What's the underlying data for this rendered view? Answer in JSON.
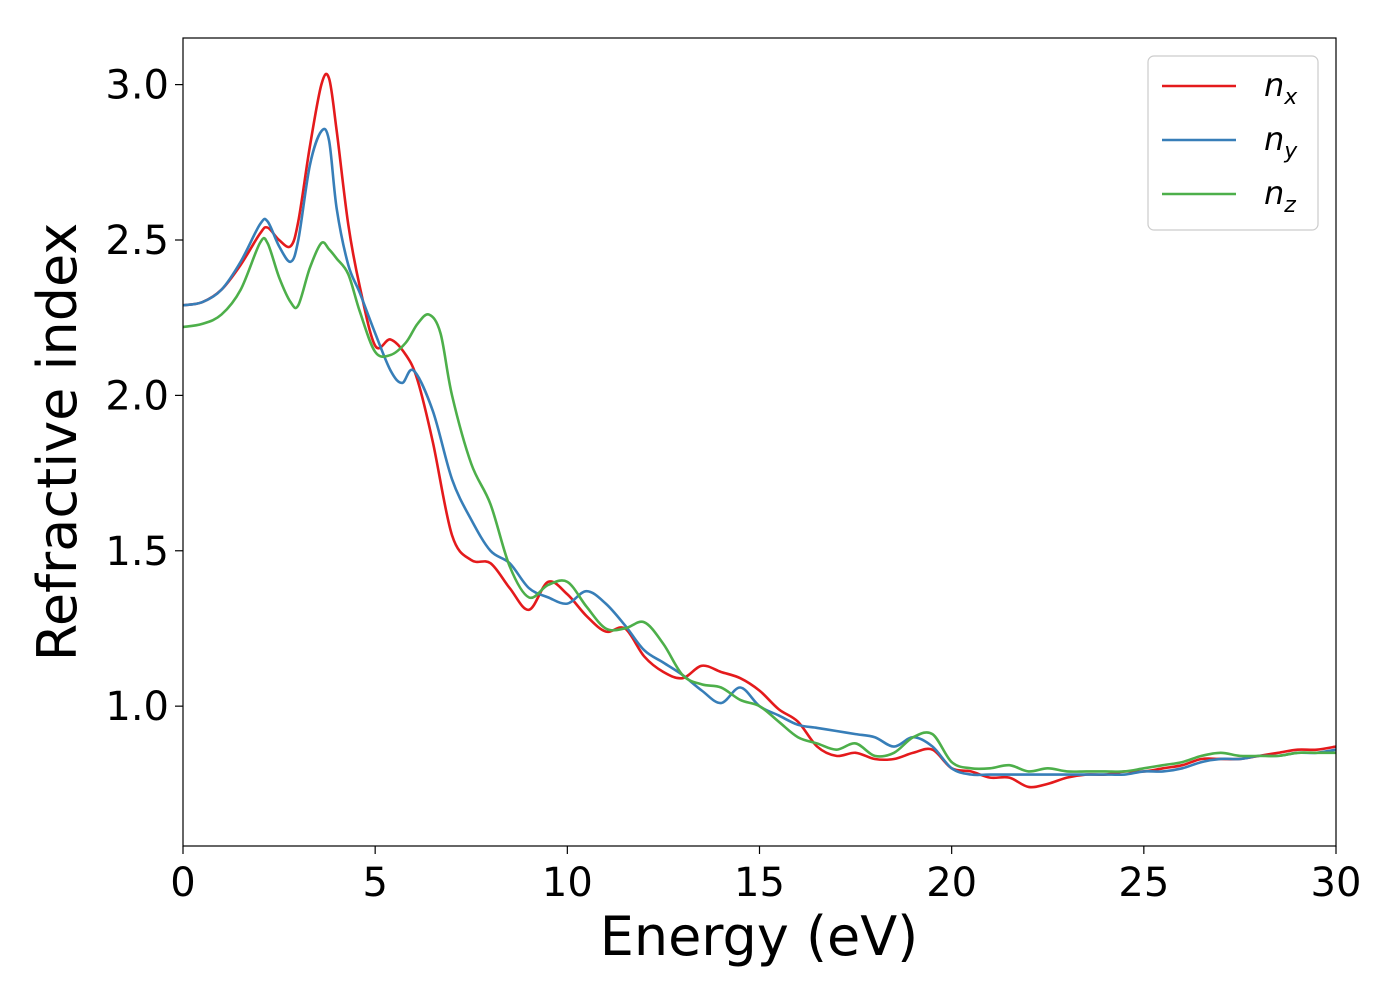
{
  "chart_data": {
    "type": "line",
    "title": "",
    "xlabel": "Energy (eV)",
    "ylabel": "Refractive index",
    "xlim": [
      0,
      30
    ],
    "ylim": [
      0.55,
      3.15
    ],
    "xticks": [
      0,
      5,
      10,
      15,
      20,
      25,
      30
    ],
    "xtick_labels": [
      "0",
      "5",
      "10",
      "15",
      "20",
      "25",
      "30"
    ],
    "yticks": [
      1.0,
      1.5,
      2.0,
      2.5,
      3.0
    ],
    "ytick_labels": [
      "1.0",
      "1.5",
      "2.0",
      "2.5",
      "3.0"
    ],
    "grid": false,
    "legend_position": "top-right",
    "series": [
      {
        "name": "n",
        "subscript": "x",
        "color": "#e41a1c",
        "x": [
          0,
          0.5,
          1.0,
          1.5,
          2.0,
          2.2,
          2.5,
          2.8,
          3.0,
          3.3,
          3.6,
          3.8,
          4.0,
          4.3,
          4.6,
          5.0,
          5.4,
          5.8,
          6.1,
          6.5,
          7.0,
          7.5,
          8.0,
          8.5,
          9.0,
          9.5,
          10.0,
          10.5,
          11.0,
          11.5,
          12.0,
          12.5,
          13.0,
          13.5,
          14.0,
          14.5,
          15.0,
          15.5,
          16.0,
          16.5,
          17.0,
          17.5,
          18.0,
          18.5,
          19.0,
          19.5,
          20.0,
          20.5,
          21.0,
          21.5,
          22.0,
          22.5,
          23.0,
          23.5,
          24.0,
          24.5,
          25.0,
          25.5,
          26.0,
          26.5,
          27.0,
          27.5,
          28.0,
          28.5,
          29.0,
          29.5,
          30.0
        ],
        "y": [
          2.29,
          2.3,
          2.34,
          2.42,
          2.52,
          2.54,
          2.5,
          2.48,
          2.56,
          2.8,
          3.0,
          3.02,
          2.85,
          2.55,
          2.35,
          2.16,
          2.18,
          2.13,
          2.05,
          1.85,
          1.55,
          1.47,
          1.46,
          1.38,
          1.31,
          1.4,
          1.36,
          1.29,
          1.24,
          1.25,
          1.16,
          1.11,
          1.09,
          1.13,
          1.11,
          1.09,
          1.05,
          0.99,
          0.95,
          0.87,
          0.84,
          0.85,
          0.83,
          0.83,
          0.85,
          0.86,
          0.8,
          0.79,
          0.77,
          0.77,
          0.74,
          0.75,
          0.77,
          0.78,
          0.78,
          0.79,
          0.79,
          0.8,
          0.81,
          0.83,
          0.83,
          0.83,
          0.84,
          0.85,
          0.86,
          0.86,
          0.87
        ]
      },
      {
        "name": "n",
        "subscript": "y",
        "color": "#377eb8",
        "x": [
          0,
          0.5,
          1.0,
          1.5,
          2.0,
          2.2,
          2.5,
          2.8,
          3.0,
          3.3,
          3.6,
          3.8,
          4.0,
          4.3,
          4.6,
          5.0,
          5.4,
          5.7,
          6.0,
          6.5,
          7.0,
          7.5,
          8.0,
          8.5,
          9.0,
          9.5,
          10.0,
          10.5,
          11.0,
          11.5,
          12.0,
          12.5,
          13.0,
          13.5,
          14.0,
          14.5,
          15.0,
          15.5,
          16.0,
          16.5,
          17.0,
          17.5,
          18.0,
          18.5,
          19.0,
          19.5,
          20.0,
          20.5,
          21.0,
          21.5,
          22.0,
          22.5,
          23.0,
          23.5,
          24.0,
          24.5,
          25.0,
          25.5,
          26.0,
          26.5,
          27.0,
          27.5,
          28.0,
          28.5,
          29.0,
          29.5,
          30.0
        ],
        "y": [
          2.29,
          2.3,
          2.34,
          2.43,
          2.55,
          2.56,
          2.48,
          2.43,
          2.5,
          2.74,
          2.85,
          2.82,
          2.6,
          2.42,
          2.33,
          2.2,
          2.08,
          2.04,
          2.08,
          1.95,
          1.73,
          1.6,
          1.5,
          1.46,
          1.38,
          1.35,
          1.33,
          1.37,
          1.33,
          1.26,
          1.18,
          1.14,
          1.1,
          1.05,
          1.01,
          1.06,
          1.0,
          0.97,
          0.94,
          0.93,
          0.92,
          0.91,
          0.9,
          0.87,
          0.9,
          0.87,
          0.8,
          0.78,
          0.78,
          0.78,
          0.78,
          0.78,
          0.78,
          0.78,
          0.78,
          0.78,
          0.79,
          0.79,
          0.8,
          0.82,
          0.83,
          0.83,
          0.84,
          0.84,
          0.85,
          0.85,
          0.86
        ]
      },
      {
        "name": "n",
        "subscript": "z",
        "color": "#4daf4a",
        "x": [
          0,
          0.5,
          1.0,
          1.5,
          2.0,
          2.2,
          2.5,
          2.8,
          3.0,
          3.3,
          3.6,
          3.8,
          4.0,
          4.3,
          4.6,
          5.0,
          5.4,
          5.8,
          6.1,
          6.4,
          6.7,
          7.0,
          7.5,
          8.0,
          8.5,
          9.0,
          9.5,
          10.0,
          10.5,
          11.0,
          11.5,
          12.0,
          12.5,
          13.0,
          13.5,
          14.0,
          14.5,
          15.0,
          15.5,
          16.0,
          16.5,
          17.0,
          17.5,
          18.0,
          18.5,
          19.0,
          19.5,
          20.0,
          20.5,
          21.0,
          21.5,
          22.0,
          22.5,
          23.0,
          23.5,
          24.0,
          24.5,
          25.0,
          25.5,
          26.0,
          26.5,
          27.0,
          27.5,
          28.0,
          28.5,
          29.0,
          29.5,
          30.0
        ],
        "y": [
          2.22,
          2.23,
          2.26,
          2.34,
          2.49,
          2.49,
          2.38,
          2.3,
          2.29,
          2.41,
          2.49,
          2.47,
          2.44,
          2.39,
          2.27,
          2.14,
          2.13,
          2.17,
          2.23,
          2.26,
          2.2,
          2.0,
          1.78,
          1.65,
          1.45,
          1.35,
          1.39,
          1.4,
          1.32,
          1.25,
          1.25,
          1.27,
          1.2,
          1.1,
          1.07,
          1.06,
          1.02,
          1.0,
          0.95,
          0.9,
          0.88,
          0.86,
          0.88,
          0.84,
          0.85,
          0.9,
          0.91,
          0.82,
          0.8,
          0.8,
          0.81,
          0.79,
          0.8,
          0.79,
          0.79,
          0.79,
          0.79,
          0.8,
          0.81,
          0.82,
          0.84,
          0.85,
          0.84,
          0.84,
          0.84,
          0.85,
          0.85,
          0.85
        ]
      }
    ]
  }
}
